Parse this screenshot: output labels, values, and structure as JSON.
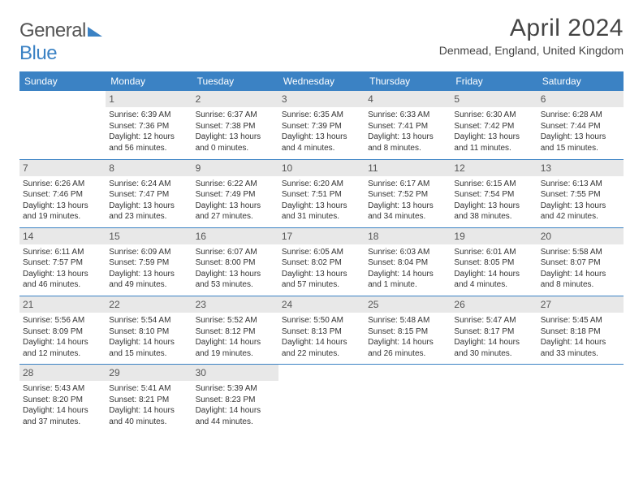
{
  "brand": {
    "part1": "General",
    "part2": "Blue"
  },
  "title": "April 2024",
  "location": "Denmead, England, United Kingdom",
  "colors": {
    "header_bg": "#3b82c4",
    "header_text": "#ffffff",
    "daynum_bg": "#e8e8e8",
    "daynum_text": "#555555",
    "rule": "#3b82c4",
    "body_text": "#333333",
    "title_text": "#444444"
  },
  "typography": {
    "title_fontsize": 30,
    "location_fontsize": 14,
    "weekday_fontsize": 12,
    "daynum_fontsize": 12,
    "cell_fontsize": 10
  },
  "weekdays": [
    "Sunday",
    "Monday",
    "Tuesday",
    "Wednesday",
    "Thursday",
    "Friday",
    "Saturday"
  ],
  "weeks": [
    [
      null,
      {
        "n": "1",
        "sr": "Sunrise: 6:39 AM",
        "ss": "Sunset: 7:36 PM",
        "d1": "Daylight: 12 hours",
        "d2": "and 56 minutes."
      },
      {
        "n": "2",
        "sr": "Sunrise: 6:37 AM",
        "ss": "Sunset: 7:38 PM",
        "d1": "Daylight: 13 hours",
        "d2": "and 0 minutes."
      },
      {
        "n": "3",
        "sr": "Sunrise: 6:35 AM",
        "ss": "Sunset: 7:39 PM",
        "d1": "Daylight: 13 hours",
        "d2": "and 4 minutes."
      },
      {
        "n": "4",
        "sr": "Sunrise: 6:33 AM",
        "ss": "Sunset: 7:41 PM",
        "d1": "Daylight: 13 hours",
        "d2": "and 8 minutes."
      },
      {
        "n": "5",
        "sr": "Sunrise: 6:30 AM",
        "ss": "Sunset: 7:42 PM",
        "d1": "Daylight: 13 hours",
        "d2": "and 11 minutes."
      },
      {
        "n": "6",
        "sr": "Sunrise: 6:28 AM",
        "ss": "Sunset: 7:44 PM",
        "d1": "Daylight: 13 hours",
        "d2": "and 15 minutes."
      }
    ],
    [
      {
        "n": "7",
        "sr": "Sunrise: 6:26 AM",
        "ss": "Sunset: 7:46 PM",
        "d1": "Daylight: 13 hours",
        "d2": "and 19 minutes."
      },
      {
        "n": "8",
        "sr": "Sunrise: 6:24 AM",
        "ss": "Sunset: 7:47 PM",
        "d1": "Daylight: 13 hours",
        "d2": "and 23 minutes."
      },
      {
        "n": "9",
        "sr": "Sunrise: 6:22 AM",
        "ss": "Sunset: 7:49 PM",
        "d1": "Daylight: 13 hours",
        "d2": "and 27 minutes."
      },
      {
        "n": "10",
        "sr": "Sunrise: 6:20 AM",
        "ss": "Sunset: 7:51 PM",
        "d1": "Daylight: 13 hours",
        "d2": "and 31 minutes."
      },
      {
        "n": "11",
        "sr": "Sunrise: 6:17 AM",
        "ss": "Sunset: 7:52 PM",
        "d1": "Daylight: 13 hours",
        "d2": "and 34 minutes."
      },
      {
        "n": "12",
        "sr": "Sunrise: 6:15 AM",
        "ss": "Sunset: 7:54 PM",
        "d1": "Daylight: 13 hours",
        "d2": "and 38 minutes."
      },
      {
        "n": "13",
        "sr": "Sunrise: 6:13 AM",
        "ss": "Sunset: 7:55 PM",
        "d1": "Daylight: 13 hours",
        "d2": "and 42 minutes."
      }
    ],
    [
      {
        "n": "14",
        "sr": "Sunrise: 6:11 AM",
        "ss": "Sunset: 7:57 PM",
        "d1": "Daylight: 13 hours",
        "d2": "and 46 minutes."
      },
      {
        "n": "15",
        "sr": "Sunrise: 6:09 AM",
        "ss": "Sunset: 7:59 PM",
        "d1": "Daylight: 13 hours",
        "d2": "and 49 minutes."
      },
      {
        "n": "16",
        "sr": "Sunrise: 6:07 AM",
        "ss": "Sunset: 8:00 PM",
        "d1": "Daylight: 13 hours",
        "d2": "and 53 minutes."
      },
      {
        "n": "17",
        "sr": "Sunrise: 6:05 AM",
        "ss": "Sunset: 8:02 PM",
        "d1": "Daylight: 13 hours",
        "d2": "and 57 minutes."
      },
      {
        "n": "18",
        "sr": "Sunrise: 6:03 AM",
        "ss": "Sunset: 8:04 PM",
        "d1": "Daylight: 14 hours",
        "d2": "and 1 minute."
      },
      {
        "n": "19",
        "sr": "Sunrise: 6:01 AM",
        "ss": "Sunset: 8:05 PM",
        "d1": "Daylight: 14 hours",
        "d2": "and 4 minutes."
      },
      {
        "n": "20",
        "sr": "Sunrise: 5:58 AM",
        "ss": "Sunset: 8:07 PM",
        "d1": "Daylight: 14 hours",
        "d2": "and 8 minutes."
      }
    ],
    [
      {
        "n": "21",
        "sr": "Sunrise: 5:56 AM",
        "ss": "Sunset: 8:09 PM",
        "d1": "Daylight: 14 hours",
        "d2": "and 12 minutes."
      },
      {
        "n": "22",
        "sr": "Sunrise: 5:54 AM",
        "ss": "Sunset: 8:10 PM",
        "d1": "Daylight: 14 hours",
        "d2": "and 15 minutes."
      },
      {
        "n": "23",
        "sr": "Sunrise: 5:52 AM",
        "ss": "Sunset: 8:12 PM",
        "d1": "Daylight: 14 hours",
        "d2": "and 19 minutes."
      },
      {
        "n": "24",
        "sr": "Sunrise: 5:50 AM",
        "ss": "Sunset: 8:13 PM",
        "d1": "Daylight: 14 hours",
        "d2": "and 22 minutes."
      },
      {
        "n": "25",
        "sr": "Sunrise: 5:48 AM",
        "ss": "Sunset: 8:15 PM",
        "d1": "Daylight: 14 hours",
        "d2": "and 26 minutes."
      },
      {
        "n": "26",
        "sr": "Sunrise: 5:47 AM",
        "ss": "Sunset: 8:17 PM",
        "d1": "Daylight: 14 hours",
        "d2": "and 30 minutes."
      },
      {
        "n": "27",
        "sr": "Sunrise: 5:45 AM",
        "ss": "Sunset: 8:18 PM",
        "d1": "Daylight: 14 hours",
        "d2": "and 33 minutes."
      }
    ],
    [
      {
        "n": "28",
        "sr": "Sunrise: 5:43 AM",
        "ss": "Sunset: 8:20 PM",
        "d1": "Daylight: 14 hours",
        "d2": "and 37 minutes."
      },
      {
        "n": "29",
        "sr": "Sunrise: 5:41 AM",
        "ss": "Sunset: 8:21 PM",
        "d1": "Daylight: 14 hours",
        "d2": "and 40 minutes."
      },
      {
        "n": "30",
        "sr": "Sunrise: 5:39 AM",
        "ss": "Sunset: 8:23 PM",
        "d1": "Daylight: 14 hours",
        "d2": "and 44 minutes."
      },
      null,
      null,
      null,
      null
    ]
  ]
}
